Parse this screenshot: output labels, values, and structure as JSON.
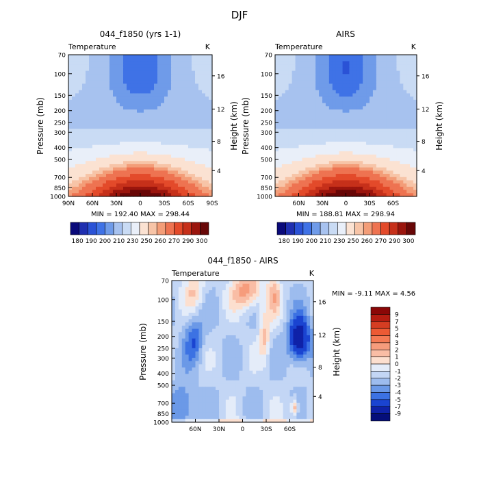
{
  "figure": {
    "title": "DJF",
    "cb_levels_abs": [
      "180",
      "190",
      "200",
      "210",
      "230",
      "250",
      "260",
      "270",
      "290",
      "300"
    ]
  },
  "chart_data": [
    {
      "type": "heatmap",
      "panel": "model",
      "title": "044_f1850 (yrs 1-1)",
      "left_label": "Temperature",
      "right_label": "K",
      "ylabel": "Pressure (mb)",
      "ylabel_right": "Height (km)",
      "x_ticks": [
        "90N",
        "60N",
        "30N",
        "0",
        "30S",
        "60S",
        "90S"
      ],
      "x_values": [
        -90,
        -60,
        -30,
        0,
        30,
        60,
        90
      ],
      "y_ticks": [
        "70",
        "100",
        "150",
        "200",
        "250",
        "300",
        "400",
        "500",
        "700",
        "850",
        "1000"
      ],
      "y_values": [
        70,
        100,
        150,
        200,
        250,
        300,
        400,
        500,
        700,
        850,
        1000
      ],
      "height_ticks": [
        "4",
        "8",
        "12",
        "16"
      ],
      "stats": "MIN = 192.40   MAX = 298.44",
      "min": 192.4,
      "max": 298.44,
      "units": "K"
    },
    {
      "type": "heatmap",
      "panel": "obs",
      "title": "AIRS",
      "left_label": "Temperature",
      "right_label": "K",
      "ylabel": "Pressure (mb)",
      "ylabel_right": "Height (km)",
      "x_ticks": [
        "60N",
        "30N",
        "0",
        "30S",
        "60S"
      ],
      "x_values": [
        -60,
        -30,
        0,
        30,
        60
      ],
      "y_ticks": [
        "70",
        "100",
        "150",
        "200",
        "250",
        "300",
        "400",
        "500",
        "700",
        "850",
        "1000"
      ],
      "y_values": [
        70,
        100,
        150,
        200,
        250,
        300,
        400,
        500,
        700,
        850,
        1000
      ],
      "height_ticks": [
        "4",
        "8",
        "12",
        "16"
      ],
      "stats": "MIN = 188.81   MAX = 298.94",
      "min": 188.81,
      "max": 298.94,
      "units": "K"
    },
    {
      "type": "heatmap",
      "panel": "diff",
      "title": "044_f1850 - AIRS",
      "left_label": "Temperature",
      "right_label": "K",
      "ylabel": "Pressure (mb)",
      "ylabel_right": "Height (km)",
      "x_ticks": [
        "60N",
        "30N",
        "0",
        "30S",
        "60S"
      ],
      "x_values": [
        -60,
        -30,
        0,
        30,
        60
      ],
      "y_ticks": [
        "70",
        "100",
        "150",
        "200",
        "250",
        "300",
        "400",
        "500",
        "700",
        "850",
        "1000"
      ],
      "y_values": [
        70,
        100,
        150,
        200,
        250,
        300,
        400,
        500,
        700,
        850,
        1000
      ],
      "height_ticks": [
        "4",
        "8",
        "12",
        "16"
      ],
      "stats": "MIN =   -9.11  MAX =    4.56",
      "min": -9.11,
      "max": 4.56,
      "cb_levels": [
        "9",
        "7",
        "5",
        "4",
        "3",
        "2",
        "1",
        "0",
        "-1",
        "-2",
        "-3",
        "-4",
        "-5",
        "-7",
        "-9"
      ],
      "units": "K"
    }
  ],
  "colors": {
    "abs_ramp": [
      "#0a0a7a",
      "#1f2fb0",
      "#2a52d6",
      "#3f72e6",
      "#6f9be9",
      "#a7c2ef",
      "#c9dbf4",
      "#e9eff9",
      "#fbe2d2",
      "#f7c4a7",
      "#f39d78",
      "#ee7351",
      "#e34a2a",
      "#c6301a",
      "#9a150d",
      "#680707"
    ],
    "diff_ramp": [
      "#8b0707",
      "#b51c11",
      "#d53d22",
      "#ec5a34",
      "#f47a54",
      "#f69c7c",
      "#f9bda5",
      "#fcdfcf",
      "#e4ecf9",
      "#c3d6f5",
      "#9dbcee",
      "#6b99e7",
      "#3c72e3",
      "#1a44d1",
      "#0f22a8",
      "#050e7a"
    ]
  }
}
